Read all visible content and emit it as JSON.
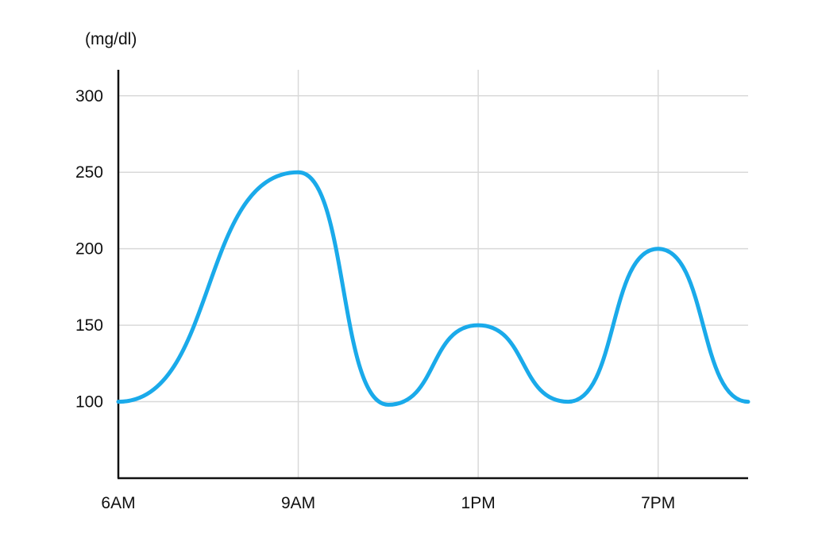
{
  "chart_data": {
    "type": "line",
    "unit_label": "(mg/dl)",
    "xlabel": "",
    "ylabel": "(mg/dl)",
    "ylim": [
      50,
      317
    ],
    "xlim": [
      0,
      14
    ],
    "grid": true,
    "y_ticks": [
      100,
      150,
      200,
      250,
      300
    ],
    "x_ticks": [
      {
        "label": "6AM",
        "value": 0
      },
      {
        "label": "9AM",
        "value": 4
      },
      {
        "label": "1PM",
        "value": 8
      },
      {
        "label": "7PM",
        "value": 12
      }
    ],
    "series": [
      {
        "color": "#1aaaea",
        "points": [
          [
            0,
            100
          ],
          [
            4,
            250
          ],
          [
            6,
            98
          ],
          [
            8,
            150
          ],
          [
            10,
            100
          ],
          [
            12,
            200
          ],
          [
            14,
            100
          ]
        ]
      }
    ]
  }
}
